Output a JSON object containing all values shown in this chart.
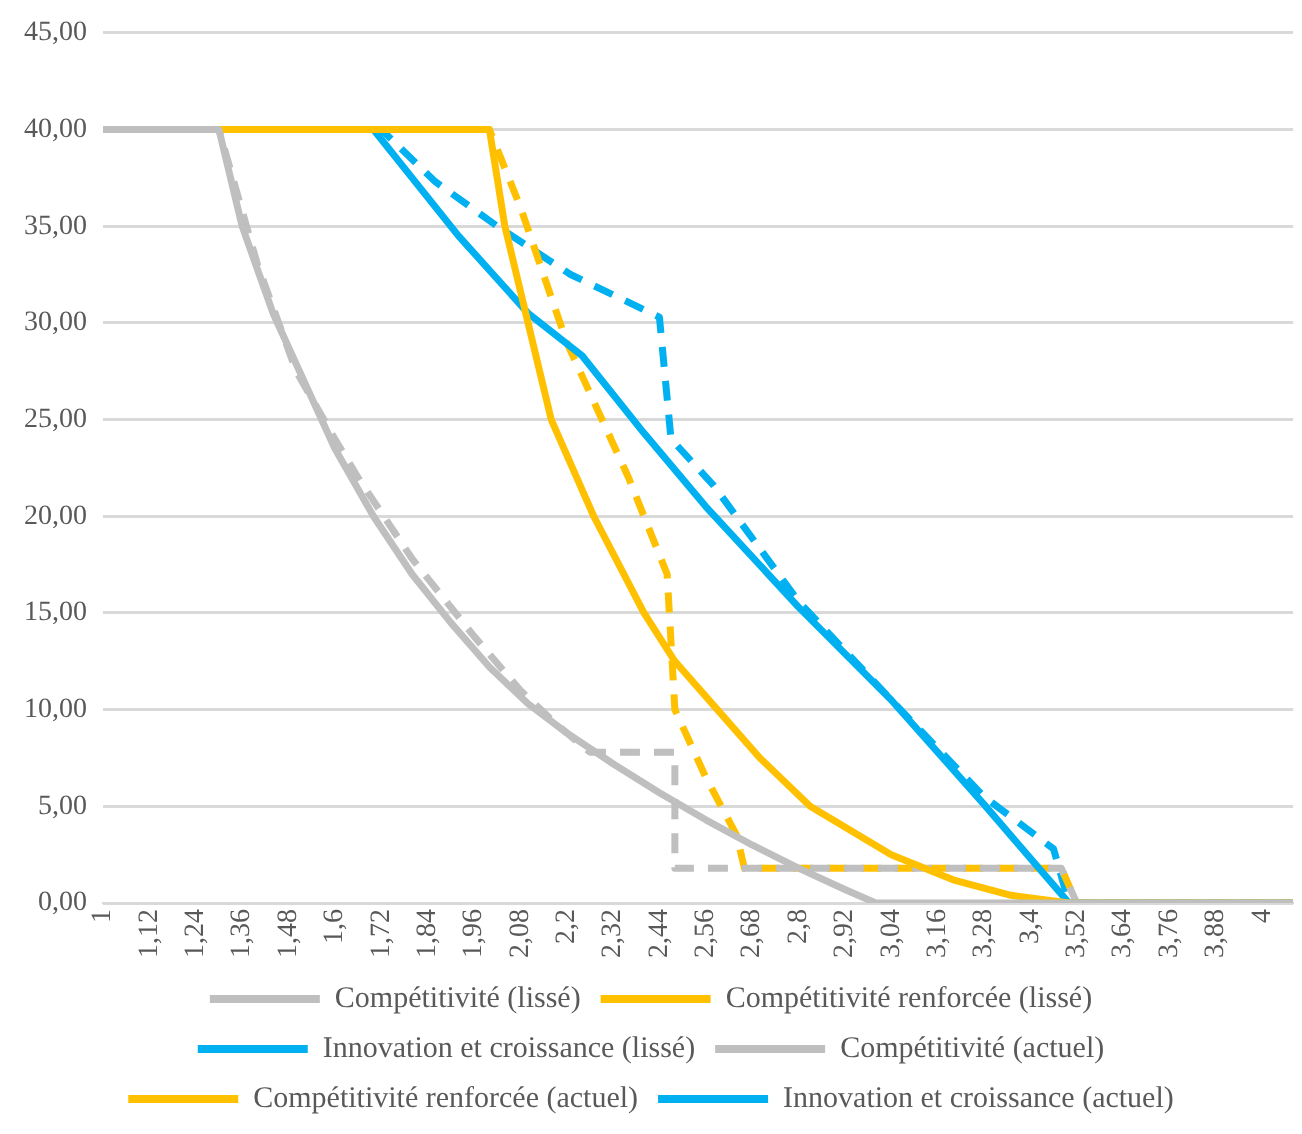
{
  "chart_data": {
    "type": "line",
    "xlim": [
      1,
      4.08
    ],
    "xticks": [
      1,
      {
        "value": 1.12,
        "label": "1,12"
      },
      {
        "value": 1.24,
        "label": "1,24"
      },
      {
        "value": 1.36,
        "label": "1,36"
      },
      {
        "value": 1.48,
        "label": "1,48"
      },
      {
        "value": 1.6,
        "label": "1,6"
      },
      {
        "value": 1.72,
        "label": "1,72"
      },
      {
        "value": 1.84,
        "label": "1,84"
      },
      {
        "value": 1.96,
        "label": "1,96"
      },
      {
        "value": 2.08,
        "label": "2,08"
      },
      {
        "value": 2.2,
        "label": "2,2"
      },
      {
        "value": 2.32,
        "label": "2,32"
      },
      {
        "value": 2.44,
        "label": "2,44"
      },
      {
        "value": 2.56,
        "label": "2,56"
      },
      {
        "value": 2.68,
        "label": "2,68"
      },
      {
        "value": 2.8,
        "label": "2,8"
      },
      {
        "value": 2.92,
        "label": "2,92"
      },
      {
        "value": 3.04,
        "label": "3,04"
      },
      {
        "value": 3.16,
        "label": "3,16"
      },
      {
        "value": 3.28,
        "label": "3,28"
      },
      {
        "value": 3.4,
        "label": "3,4"
      },
      {
        "value": 3.52,
        "label": "3,52"
      },
      {
        "value": 3.64,
        "label": "3,64"
      },
      {
        "value": 3.76,
        "label": "3,76"
      },
      {
        "value": 3.88,
        "label": "3,88"
      },
      4
    ],
    "ylim": [
      0,
      45
    ],
    "yticks": [
      {
        "value": 0,
        "label": "0,00"
      },
      {
        "value": 5,
        "label": "5,00"
      },
      {
        "value": 10,
        "label": "10,00"
      },
      {
        "value": 15,
        "label": "15,00"
      },
      {
        "value": 20,
        "label": "20,00"
      },
      {
        "value": 25,
        "label": "25,00"
      },
      {
        "value": 30,
        "label": "30,00"
      },
      {
        "value": 35,
        "label": "35,00"
      },
      {
        "value": 40,
        "label": "40,00"
      },
      {
        "value": 45,
        "label": "45,00"
      }
    ],
    "grid": "y",
    "legend": "bottom",
    "marker": "none",
    "series": [
      {
        "name": "Compétitivité (lissé)",
        "color": "#bfbfbf",
        "line_style": "solid",
        "x": [
          1,
          1.3,
          1.36,
          1.44,
          1.52,
          1.6,
          1.7,
          1.8,
          1.9,
          2.0,
          2.1,
          2.2,
          2.32,
          2.44,
          2.56,
          2.68,
          2.8,
          2.92,
          3.0,
          4.08
        ],
        "values": [
          40,
          40,
          35,
          30.5,
          27,
          23.5,
          20,
          17,
          14.5,
          12.2,
          10.3,
          8.8,
          7.2,
          5.7,
          4.3,
          3,
          1.8,
          0.7,
          0,
          0
        ]
      },
      {
        "name": "Compétitivité renforcée (lissé)",
        "color": "#ffc000",
        "line_style": "solid",
        "x": [
          1,
          2.0,
          2.04,
          2.1,
          2.16,
          2.27,
          2.4,
          2.48,
          2.59,
          2.7,
          2.83,
          3.04,
          3.2,
          3.35,
          3.5,
          4.08
        ],
        "values": [
          40,
          40,
          35,
          30,
          25,
          20,
          15,
          12.5,
          10,
          7.5,
          5,
          2.5,
          1.2,
          0.4,
          0,
          0
        ]
      },
      {
        "name": "Innovation et croissance (lissé)",
        "color": "#00b0f0",
        "line_style": "solid",
        "x": [
          1,
          1.7,
          1.8,
          1.92,
          2.1,
          2.24,
          2.4,
          2.56,
          2.8,
          3.04,
          3.28,
          3.5,
          4.08
        ],
        "values": [
          40,
          40,
          37.5,
          34.5,
          30.5,
          28.3,
          24.3,
          20.5,
          15.3,
          10.5,
          5.1,
          0,
          0
        ]
      },
      {
        "name": "Compétitivité (actuel)",
        "color": "#bfbfbf",
        "line_style": "dashed",
        "x": [
          1,
          1.3,
          1.4,
          1.5,
          1.6,
          1.66,
          1.8,
          1.96,
          2.08,
          2.17,
          2.26,
          2.48,
          2.48,
          3.48,
          3.52,
          4.08
        ],
        "values": [
          40,
          40,
          33,
          27.5,
          24,
          22,
          17.8,
          13.8,
          11,
          9.3,
          7.8,
          7.8,
          1.8,
          1.8,
          0,
          0
        ]
      },
      {
        "name": "Compétitivité renforcée (actuel)",
        "color": "#ffc000",
        "line_style": "dashed",
        "x": [
          1,
          2.0,
          2.08,
          2.2,
          2.36,
          2.46,
          2.48,
          2.56,
          2.64,
          2.66,
          3.48,
          3.52,
          4.08
        ],
        "values": [
          40,
          40,
          36,
          29,
          22,
          17,
          10,
          6.5,
          3.5,
          1.8,
          1.8,
          0,
          0
        ]
      },
      {
        "name": "Innovation et croissance (actuel)",
        "color": "#00b0f0",
        "line_style": "dashed",
        "x": [
          1,
          1.72,
          1.86,
          2.02,
          2.21,
          2.44,
          2.47,
          2.58,
          2.8,
          3.04,
          3.28,
          3.46,
          3.5,
          4.08
        ],
        "values": [
          40,
          40,
          37.3,
          35,
          32.5,
          30.3,
          24,
          21.6,
          15.6,
          10.5,
          5.5,
          2.8,
          0,
          0
        ]
      }
    ]
  }
}
